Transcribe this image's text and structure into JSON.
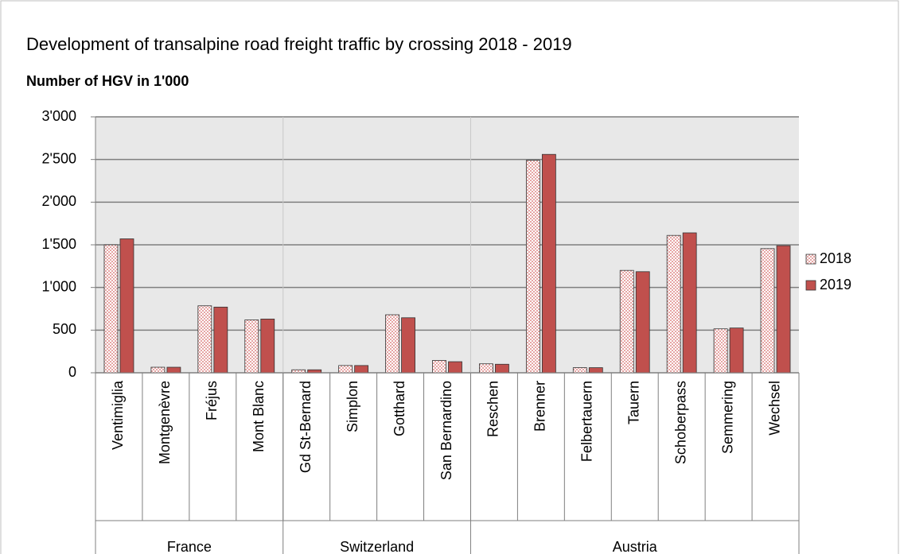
{
  "chart_data": {
    "type": "bar",
    "title": "Development of transalpine road freight traffic by crossing 2018 - 2019",
    "subtitle": "Number of HGV in 1'000",
    "groups": [
      {
        "name": "France",
        "categories": [
          "Ventimiglia",
          "Montgenèvre",
          "Fréjus",
          "Mont Blanc"
        ]
      },
      {
        "name": "Switzerland",
        "categories": [
          "Gd St-Bernard",
          "Simplon",
          "Gotthard",
          "San Bernardino"
        ]
      },
      {
        "name": "Austria",
        "categories": [
          "Reschen",
          "Brenner",
          "Felbertauern",
          "Tauern",
          "Schoberpass",
          "Semmering",
          "Wechsel"
        ]
      }
    ],
    "series": [
      {
        "name": "2018",
        "color": "#e6a5a4",
        "pattern": true,
        "values": [
          1500,
          65,
          785,
          620,
          35,
          85,
          680,
          145,
          105,
          2490,
          60,
          1200,
          1610,
          515,
          1455
        ]
      },
      {
        "name": "2019",
        "color": "#c0504d",
        "values": [
          1570,
          65,
          770,
          630,
          35,
          85,
          645,
          130,
          100,
          2560,
          60,
          1185,
          1640,
          525,
          1490
        ]
      }
    ],
    "ylim": [
      0,
      3000
    ],
    "yticks": [
      0,
      500,
      {
        "value": 1000,
        "label": "1'000"
      },
      {
        "value": 1500,
        "label": "1'500"
      },
      {
        "value": 2000,
        "label": "2'000"
      },
      {
        "value": 2500,
        "label": "2'500"
      },
      {
        "value": 3000,
        "label": "3'000"
      }
    ],
    "grid": true,
    "legend": "right"
  }
}
